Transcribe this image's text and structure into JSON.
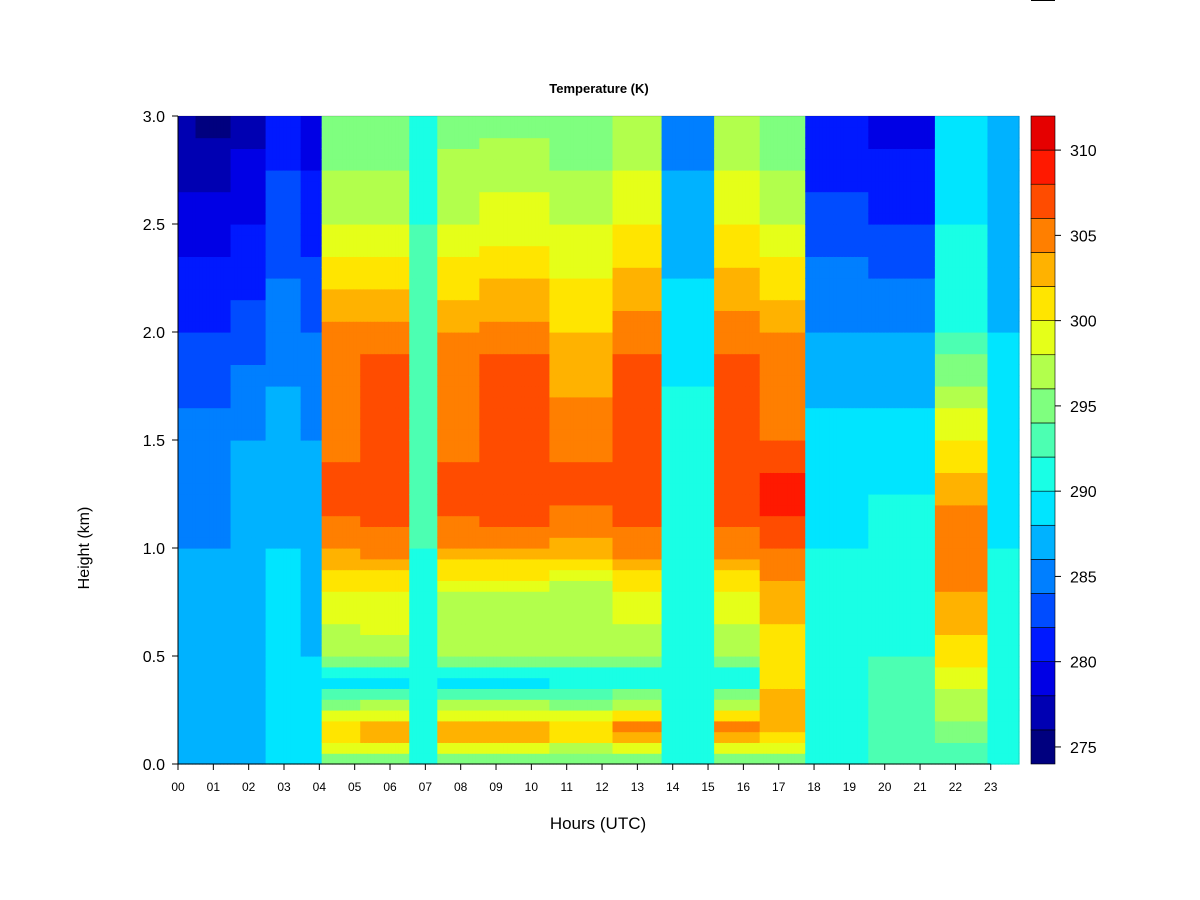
{
  "chart_data": {
    "type": "heatmap",
    "title": "Temperature (K)",
    "xlabel": "Hours (UTC)",
    "ylabel": "Height (km)",
    "x_ticks": [
      "00",
      "01",
      "02",
      "03",
      "04",
      "05",
      "06",
      "07",
      "08",
      "09",
      "10",
      "11",
      "12",
      "13",
      "14",
      "15",
      "16",
      "17",
      "18",
      "19",
      "20",
      "21",
      "22",
      "23"
    ],
    "xlim": [
      0,
      23.8
    ],
    "y_ticks": [
      "0.0",
      "0.5",
      "1.0",
      "1.5",
      "2.0",
      "2.5",
      "3.0"
    ],
    "ylim": [
      0.0,
      3.0
    ],
    "colorbar": {
      "label_ticks": [
        "275",
        "280",
        "285",
        "290",
        "295",
        "300",
        "305",
        "310"
      ],
      "range": [
        274,
        312
      ],
      "step": 2,
      "levels": [
        274,
        276,
        278,
        280,
        282,
        284,
        286,
        288,
        290,
        292,
        294,
        296,
        298,
        300,
        302,
        304,
        306,
        308,
        310,
        312
      ],
      "colors": [
        "#00007f",
        "#0000b2",
        "#0000e5",
        "#0019ff",
        "#004cff",
        "#007fff",
        "#00b2ff",
        "#00e5ff",
        "#19ffe5",
        "#4cffb2",
        "#7fff7f",
        "#b2ff4c",
        "#e5ff19",
        "#ffe500",
        "#ffb200",
        "#ff7f00",
        "#ff4c00",
        "#ff1900",
        "#e50000",
        "#b20000",
        "#7f0000"
      ]
    },
    "profiles": [
      {
        "hour": 0.0,
        "heights": [
          0.0,
          0.5,
          1.0,
          1.5,
          2.0,
          2.5,
          3.0
        ],
        "temperature_K": [
          288,
          287,
          286,
          285,
          282,
          279,
          276
        ]
      },
      {
        "hour": 1.0,
        "heights": [
          0.0,
          0.5,
          1.0,
          1.5,
          2.0,
          2.5,
          3.0
        ],
        "temperature_K": [
          287,
          286,
          286,
          285,
          282,
          279,
          275
        ]
      },
      {
        "hour": 2.0,
        "heights": [
          0.0,
          0.5,
          1.0,
          1.5,
          2.0,
          2.5,
          3.0
        ],
        "temperature_K": [
          288,
          287,
          287,
          286,
          283,
          280,
          277
        ]
      },
      {
        "hour": 3.0,
        "heights": [
          0.0,
          0.5,
          1.0,
          1.5,
          2.0,
          2.5,
          3.0
        ],
        "temperature_K": [
          289,
          288,
          288,
          287,
          285,
          283,
          281
        ]
      },
      {
        "hour": 3.9,
        "heights": [
          0.0,
          0.5,
          1.0,
          1.5,
          2.0,
          2.5,
          3.0
        ],
        "temperature_K": [
          289,
          288,
          287,
          286,
          284,
          281,
          279
        ]
      },
      {
        "hour": 4.3,
        "heights": [
          0.0,
          0.15,
          0.4,
          0.5,
          0.8,
          1.0,
          1.25,
          1.5,
          1.9,
          2.5,
          3.0
        ],
        "temperature_K": [
          293,
          303,
          288,
          296,
          300,
          304,
          307,
          305,
          306,
          298,
          294
        ]
      },
      {
        "hour": 6.0,
        "heights": [
          0.0,
          0.15,
          0.4,
          0.5,
          0.8,
          1.0,
          1.25,
          1.5,
          1.9,
          2.5,
          3.0
        ],
        "temperature_K": [
          293,
          305,
          288,
          297,
          300,
          305,
          308,
          306,
          306,
          298,
          294
        ]
      },
      {
        "hour": 7.1,
        "heights": [
          0.0,
          0.5,
          1.0,
          1.5,
          2.0,
          2.5,
          3.0
        ],
        "temperature_K": [
          291,
          291,
          292,
          293,
          293,
          292,
          291
        ]
      },
      {
        "hour": 7.5,
        "heights": [
          0.0,
          0.15,
          0.4,
          0.5,
          0.8,
          1.0,
          1.25,
          1.5,
          1.9,
          2.5,
          3.0
        ],
        "temperature_K": [
          293,
          305,
          288,
          296,
          298,
          304,
          307,
          305,
          305,
          298,
          295
        ]
      },
      {
        "hour": 9.5,
        "heights": [
          0.0,
          0.15,
          0.4,
          0.5,
          0.8,
          1.0,
          1.25,
          1.5,
          1.9,
          2.5,
          3.0
        ],
        "temperature_K": [
          293,
          305,
          288,
          296,
          298,
          304,
          308,
          306,
          306,
          299,
          295
        ]
      },
      {
        "hour": 11.5,
        "heights": [
          0.0,
          0.15,
          0.4,
          0.5,
          0.8,
          1.0,
          1.25,
          1.5,
          1.9,
          2.5,
          3.0
        ],
        "temperature_K": [
          293,
          302,
          289,
          296,
          297,
          303,
          307,
          305,
          303,
          298,
          294
        ]
      },
      {
        "hour": 13.0,
        "heights": [
          0.0,
          0.15,
          0.4,
          0.5,
          0.8,
          1.0,
          1.25,
          1.5,
          1.9,
          2.5,
          3.0
        ],
        "temperature_K": [
          293,
          306,
          289,
          296,
          300,
          305,
          308,
          306,
          306,
          300,
          296
        ]
      },
      {
        "hour": 14.3,
        "heights": [
          0.0,
          0.5,
          1.0,
          1.5,
          2.0,
          2.5,
          3.0
        ],
        "temperature_K": [
          290,
          291,
          292,
          291,
          289,
          287,
          285
        ]
      },
      {
        "hour": 16.0,
        "heights": [
          0.0,
          0.15,
          0.4,
          0.5,
          0.8,
          1.0,
          1.25,
          1.5,
          1.9,
          2.5,
          3.0
        ],
        "temperature_K": [
          293,
          306,
          289,
          296,
          300,
          305,
          308,
          306,
          306,
          300,
          296
        ]
      },
      {
        "hour": 17.0,
        "heights": [
          0.0,
          0.15,
          0.5,
          0.8,
          1.0,
          1.25,
          1.5,
          1.9,
          2.5,
          3.0
        ],
        "temperature_K": [
          293,
          303,
          301,
          303,
          306,
          309,
          306,
          305,
          298,
          294
        ]
      },
      {
        "hour": 18.5,
        "heights": [
          0.0,
          0.5,
          1.0,
          1.5,
          2.0,
          2.5,
          3.0
        ],
        "temperature_K": [
          290,
          290,
          290,
          289,
          286,
          283,
          280
        ]
      },
      {
        "hour": 20.5,
        "heights": [
          0.0,
          0.5,
          1.0,
          1.5,
          2.0,
          2.5,
          3.0
        ],
        "temperature_K": [
          292,
          292,
          291,
          289,
          286,
          282,
          279
        ]
      },
      {
        "hour": 22.4,
        "heights": [
          0.0,
          0.5,
          0.9,
          1.2,
          1.5,
          2.0,
          2.5,
          3.0
        ],
        "temperature_K": [
          292,
          301,
          305,
          304,
          300,
          292,
          290,
          288
        ]
      },
      {
        "hour": 23.5,
        "heights": [
          0.0,
          0.5,
          1.0,
          1.5,
          2.0,
          2.5,
          3.0
        ],
        "temperature_K": [
          292,
          291,
          290,
          289,
          288,
          287,
          286
        ]
      }
    ]
  }
}
